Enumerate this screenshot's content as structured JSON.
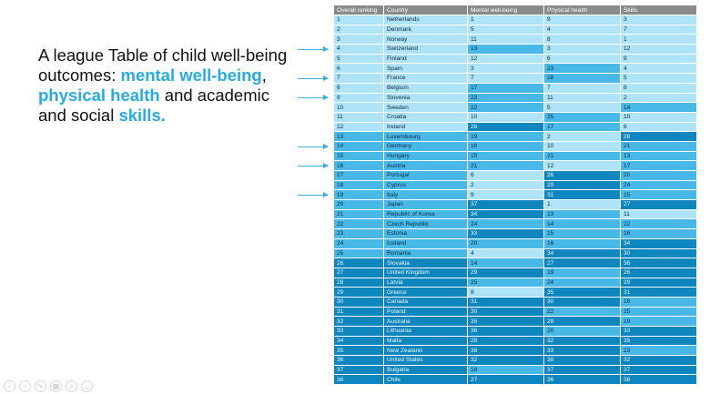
{
  "slide": {
    "title_parts": [
      {
        "text": "A league Table of child well-being outcomes: ",
        "highlight": false
      },
      {
        "text": "mental well-being",
        "highlight": true
      },
      {
        "text": ", ",
        "highlight": false
      },
      {
        "text": "physical health",
        "highlight": true
      },
      {
        "text": " and academic and social ",
        "highlight": false
      },
      {
        "text": "skills.",
        "highlight": true
      }
    ],
    "highlight_color": "#29abe2",
    "arrow_rows": [
      "Switzerland",
      "France",
      "Slovenia",
      "Germany",
      "Austria",
      "Italy"
    ]
  },
  "table": {
    "headers": [
      "Overall ranking",
      "Country",
      "Mental well-being",
      "Physical health",
      "Skills"
    ],
    "rows": [
      [
        "1",
        "Netherlands",
        "1",
        "9",
        "3"
      ],
      [
        "2",
        "Denmark",
        "5",
        "4",
        "7"
      ],
      [
        "3",
        "Norway",
        "11",
        "8",
        "1"
      ],
      [
        "4",
        "Switzerland",
        "13",
        "3",
        "12"
      ],
      [
        "5",
        "Finland",
        "12",
        "6",
        "9"
      ],
      [
        "6",
        "Spain",
        "3",
        "23",
        "4"
      ],
      [
        "7",
        "France",
        "7",
        "18",
        "5"
      ],
      [
        "8",
        "Belgium",
        "17",
        "7",
        "8"
      ],
      [
        "9",
        "Slovenia",
        "23",
        "11",
        "2"
      ],
      [
        "10",
        "Sweden",
        "22",
        "5",
        "14"
      ],
      [
        "11",
        "Croatia",
        "10",
        "25",
        "10"
      ],
      [
        "12",
        "Ireland",
        "26",
        "17",
        "6"
      ],
      [
        "13",
        "Luxembourg",
        "19",
        "2",
        "28"
      ],
      [
        "14",
        "Germany",
        "16",
        "10",
        "21"
      ],
      [
        "15",
        "Hungary",
        "15",
        "21",
        "13"
      ],
      [
        "16",
        "Austria",
        "21",
        "12",
        "17"
      ],
      [
        "17",
        "Portugal",
        "6",
        "26",
        "20"
      ],
      [
        "18",
        "Cyprus",
        "2",
        "29",
        "24"
      ],
      [
        "19",
        "Italy",
        "9",
        "31",
        "15"
      ],
      [
        "20",
        "Japan",
        "37",
        "1",
        "27"
      ],
      [
        "21",
        "Republic of Korea",
        "34",
        "13",
        "11"
      ],
      [
        "22",
        "Czech Republic",
        "24",
        "14",
        "22"
      ],
      [
        "23",
        "Estonia",
        "33",
        "15",
        "16"
      ],
      [
        "24",
        "Iceland",
        "20",
        "16",
        "34"
      ],
      [
        "25",
        "Romania",
        "4",
        "34",
        "30"
      ],
      [
        "26",
        "Slovakia",
        "14",
        "27",
        "36"
      ],
      [
        "27",
        "United Kingdom",
        "29",
        "19",
        "26"
      ],
      [
        "28",
        "Latvia",
        "25",
        "24",
        "29"
      ],
      [
        "29",
        "Greece",
        "8",
        "35",
        "31"
      ],
      [
        "30",
        "Canada",
        "31",
        "30",
        "18"
      ],
      [
        "31",
        "Poland",
        "30",
        "22",
        "25"
      ],
      [
        "32",
        "Australia",
        "35",
        "28",
        "19"
      ],
      [
        "33",
        "Lithuania",
        "36",
        "20",
        "33"
      ],
      [
        "34",
        "Malta",
        "28",
        "32",
        "35"
      ],
      [
        "35",
        "New Zealand",
        "38",
        "33",
        "23"
      ],
      [
        "36",
        "United States",
        "32",
        "38",
        "32"
      ],
      [
        "37",
        "Bulgaria",
        "18",
        "37",
        "37"
      ],
      [
        "38",
        "Chile",
        "27",
        "36",
        "38"
      ]
    ],
    "colors": {
      "top": "#aee3f8",
      "middle": "#48b9e7",
      "bottom": "#0f86bd",
      "header": "#8a8a8a"
    }
  },
  "toolbar": {
    "icons": [
      {
        "name": "previous-slide-icon",
        "glyph": "‹"
      },
      {
        "name": "next-slide-icon",
        "glyph": "›"
      },
      {
        "name": "pen-icon",
        "glyph": "✎"
      },
      {
        "name": "slides-overview-icon",
        "glyph": "▦"
      },
      {
        "name": "zoom-icon",
        "glyph": "⌕"
      },
      {
        "name": "more-options-icon",
        "glyph": "…"
      }
    ]
  }
}
